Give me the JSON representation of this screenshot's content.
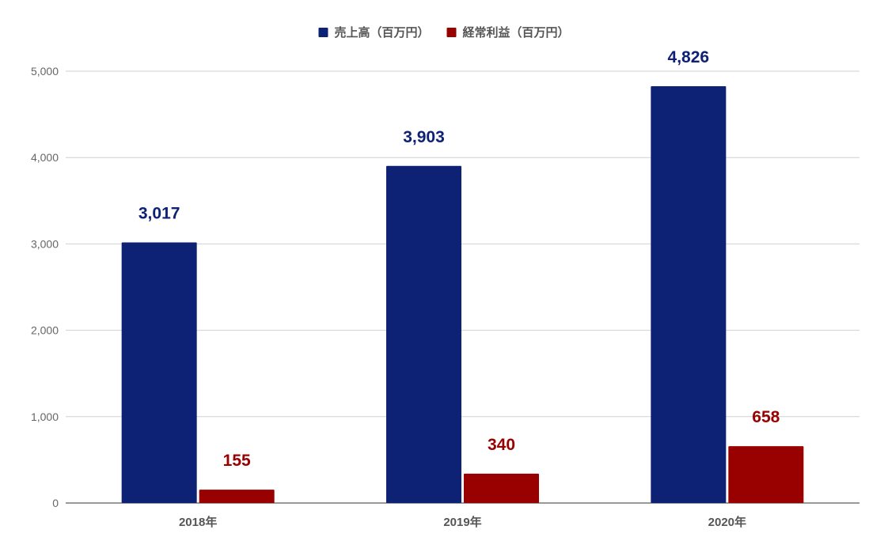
{
  "chart_data": {
    "type": "bar",
    "categories": [
      "2018年",
      "2019年",
      "2020年"
    ],
    "series": [
      {
        "name": "売上高（百万円）",
        "color": "#0d2275",
        "values": [
          3017,
          3903,
          4826
        ],
        "labels": [
          "3,017",
          "3,903",
          "4,826"
        ]
      },
      {
        "name": "経常利益（百万円）",
        "color": "#990000",
        "values": [
          155,
          340,
          658
        ],
        "labels": [
          "155",
          "340",
          "658"
        ]
      }
    ],
    "ylim": [
      0,
      5000
    ],
    "yticks": [
      0,
      1000,
      2000,
      3000,
      4000,
      5000
    ],
    "ytick_labels": [
      "0",
      "1,000",
      "2,000",
      "3,000",
      "4,000",
      "5,000"
    ],
    "grid": true,
    "legend_position": "top-center",
    "title": "",
    "xlabel": "",
    "ylabel": ""
  }
}
